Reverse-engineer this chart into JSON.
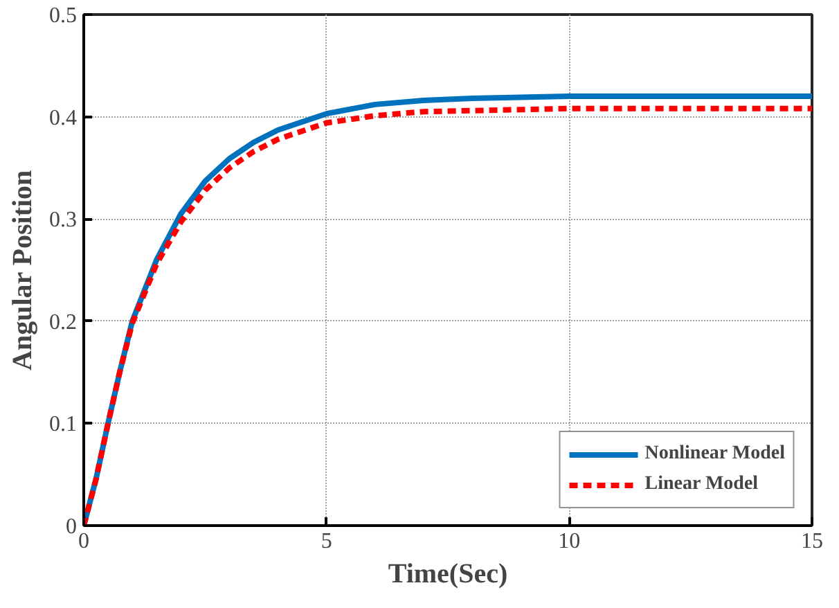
{
  "chart_data": {
    "type": "line",
    "xlabel": "Time(Sec)",
    "ylabel": "Angular Position",
    "x": [
      0,
      0.25,
      0.5,
      0.75,
      1,
      1.5,
      2,
      2.5,
      3,
      3.5,
      4,
      5,
      6,
      7,
      8,
      9,
      10,
      12,
      15
    ],
    "series": [
      {
        "name": "Nonlinear Model",
        "color": "#0072bd",
        "line_style": "solid",
        "values": [
          0,
          0.045,
          0.1,
          0.152,
          0.2,
          0.26,
          0.305,
          0.337,
          0.359,
          0.375,
          0.387,
          0.403,
          0.412,
          0.416,
          0.418,
          0.419,
          0.42,
          0.42,
          0.42
        ]
      },
      {
        "name": "Linear Model",
        "color": "#ff0000",
        "line_style": "dashed",
        "values": [
          0,
          0.045,
          0.1,
          0.152,
          0.198,
          0.256,
          0.297,
          0.328,
          0.35,
          0.366,
          0.378,
          0.394,
          0.401,
          0.405,
          0.406,
          0.407,
          0.408,
          0.408,
          0.408
        ]
      }
    ],
    "xlim": [
      0,
      15
    ],
    "ylim": [
      0,
      0.5
    ],
    "xticks": [
      0,
      5,
      10,
      15
    ],
    "yticks": [
      0,
      0.1,
      0.2,
      0.3,
      0.4,
      0.5
    ],
    "grid": true,
    "legend": "bottom right"
  }
}
